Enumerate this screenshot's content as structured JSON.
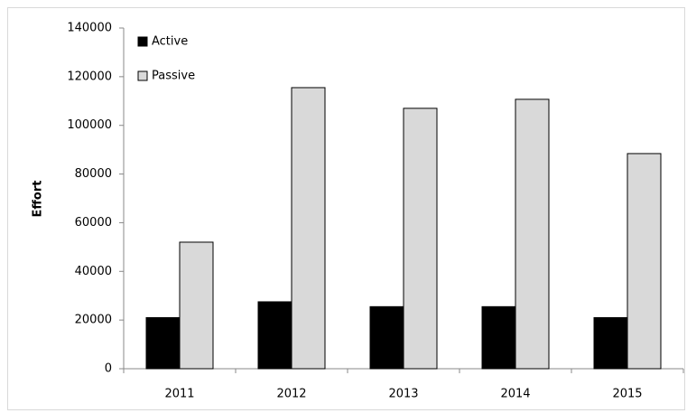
{
  "chart_data": {
    "type": "bar",
    "y_label": "Effort",
    "categories": [
      "2011",
      "2012",
      "2013",
      "2014",
      "2015"
    ],
    "series": [
      {
        "name": "Active",
        "color": "#000000",
        "values": [
          21000,
          27500,
          25500,
          25500,
          21000
        ]
      },
      {
        "name": "Passive",
        "color": "#d9d9d9",
        "values": [
          52000,
          115500,
          107000,
          110700,
          88400
        ]
      }
    ],
    "ylim": [
      0,
      140000
    ],
    "yticks": [
      0,
      20000,
      40000,
      60000,
      80000,
      100000,
      120000,
      140000
    ],
    "grid": false,
    "legend": "top-left"
  }
}
